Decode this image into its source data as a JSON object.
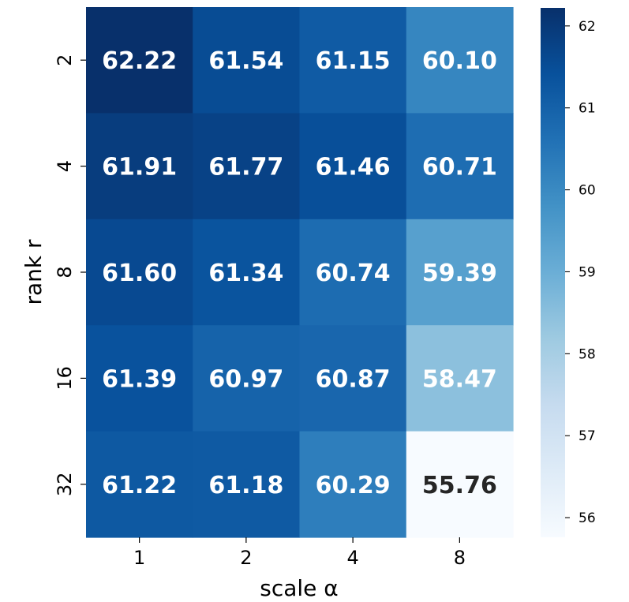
{
  "chart_data": {
    "type": "heatmap",
    "xlabel": "scale α",
    "ylabel": "rank r",
    "x_categories": [
      "1",
      "2",
      "4",
      "8"
    ],
    "y_categories": [
      "2",
      "4",
      "8",
      "16",
      "32"
    ],
    "values": [
      [
        62.22,
        61.54,
        61.15,
        60.1
      ],
      [
        61.91,
        61.77,
        61.46,
        60.71
      ],
      [
        61.6,
        61.34,
        60.74,
        59.39
      ],
      [
        61.39,
        60.97,
        60.87,
        58.47
      ],
      [
        61.22,
        61.18,
        60.29,
        55.76
      ]
    ],
    "colorbar": {
      "colormap": "Blues",
      "range": [
        55.76,
        62.22
      ],
      "ticks": [
        "56",
        "57",
        "58",
        "59",
        "60",
        "61",
        "62"
      ]
    },
    "annotation_colors": {
      "light": "#ffffff",
      "dark": "#262626"
    }
  }
}
